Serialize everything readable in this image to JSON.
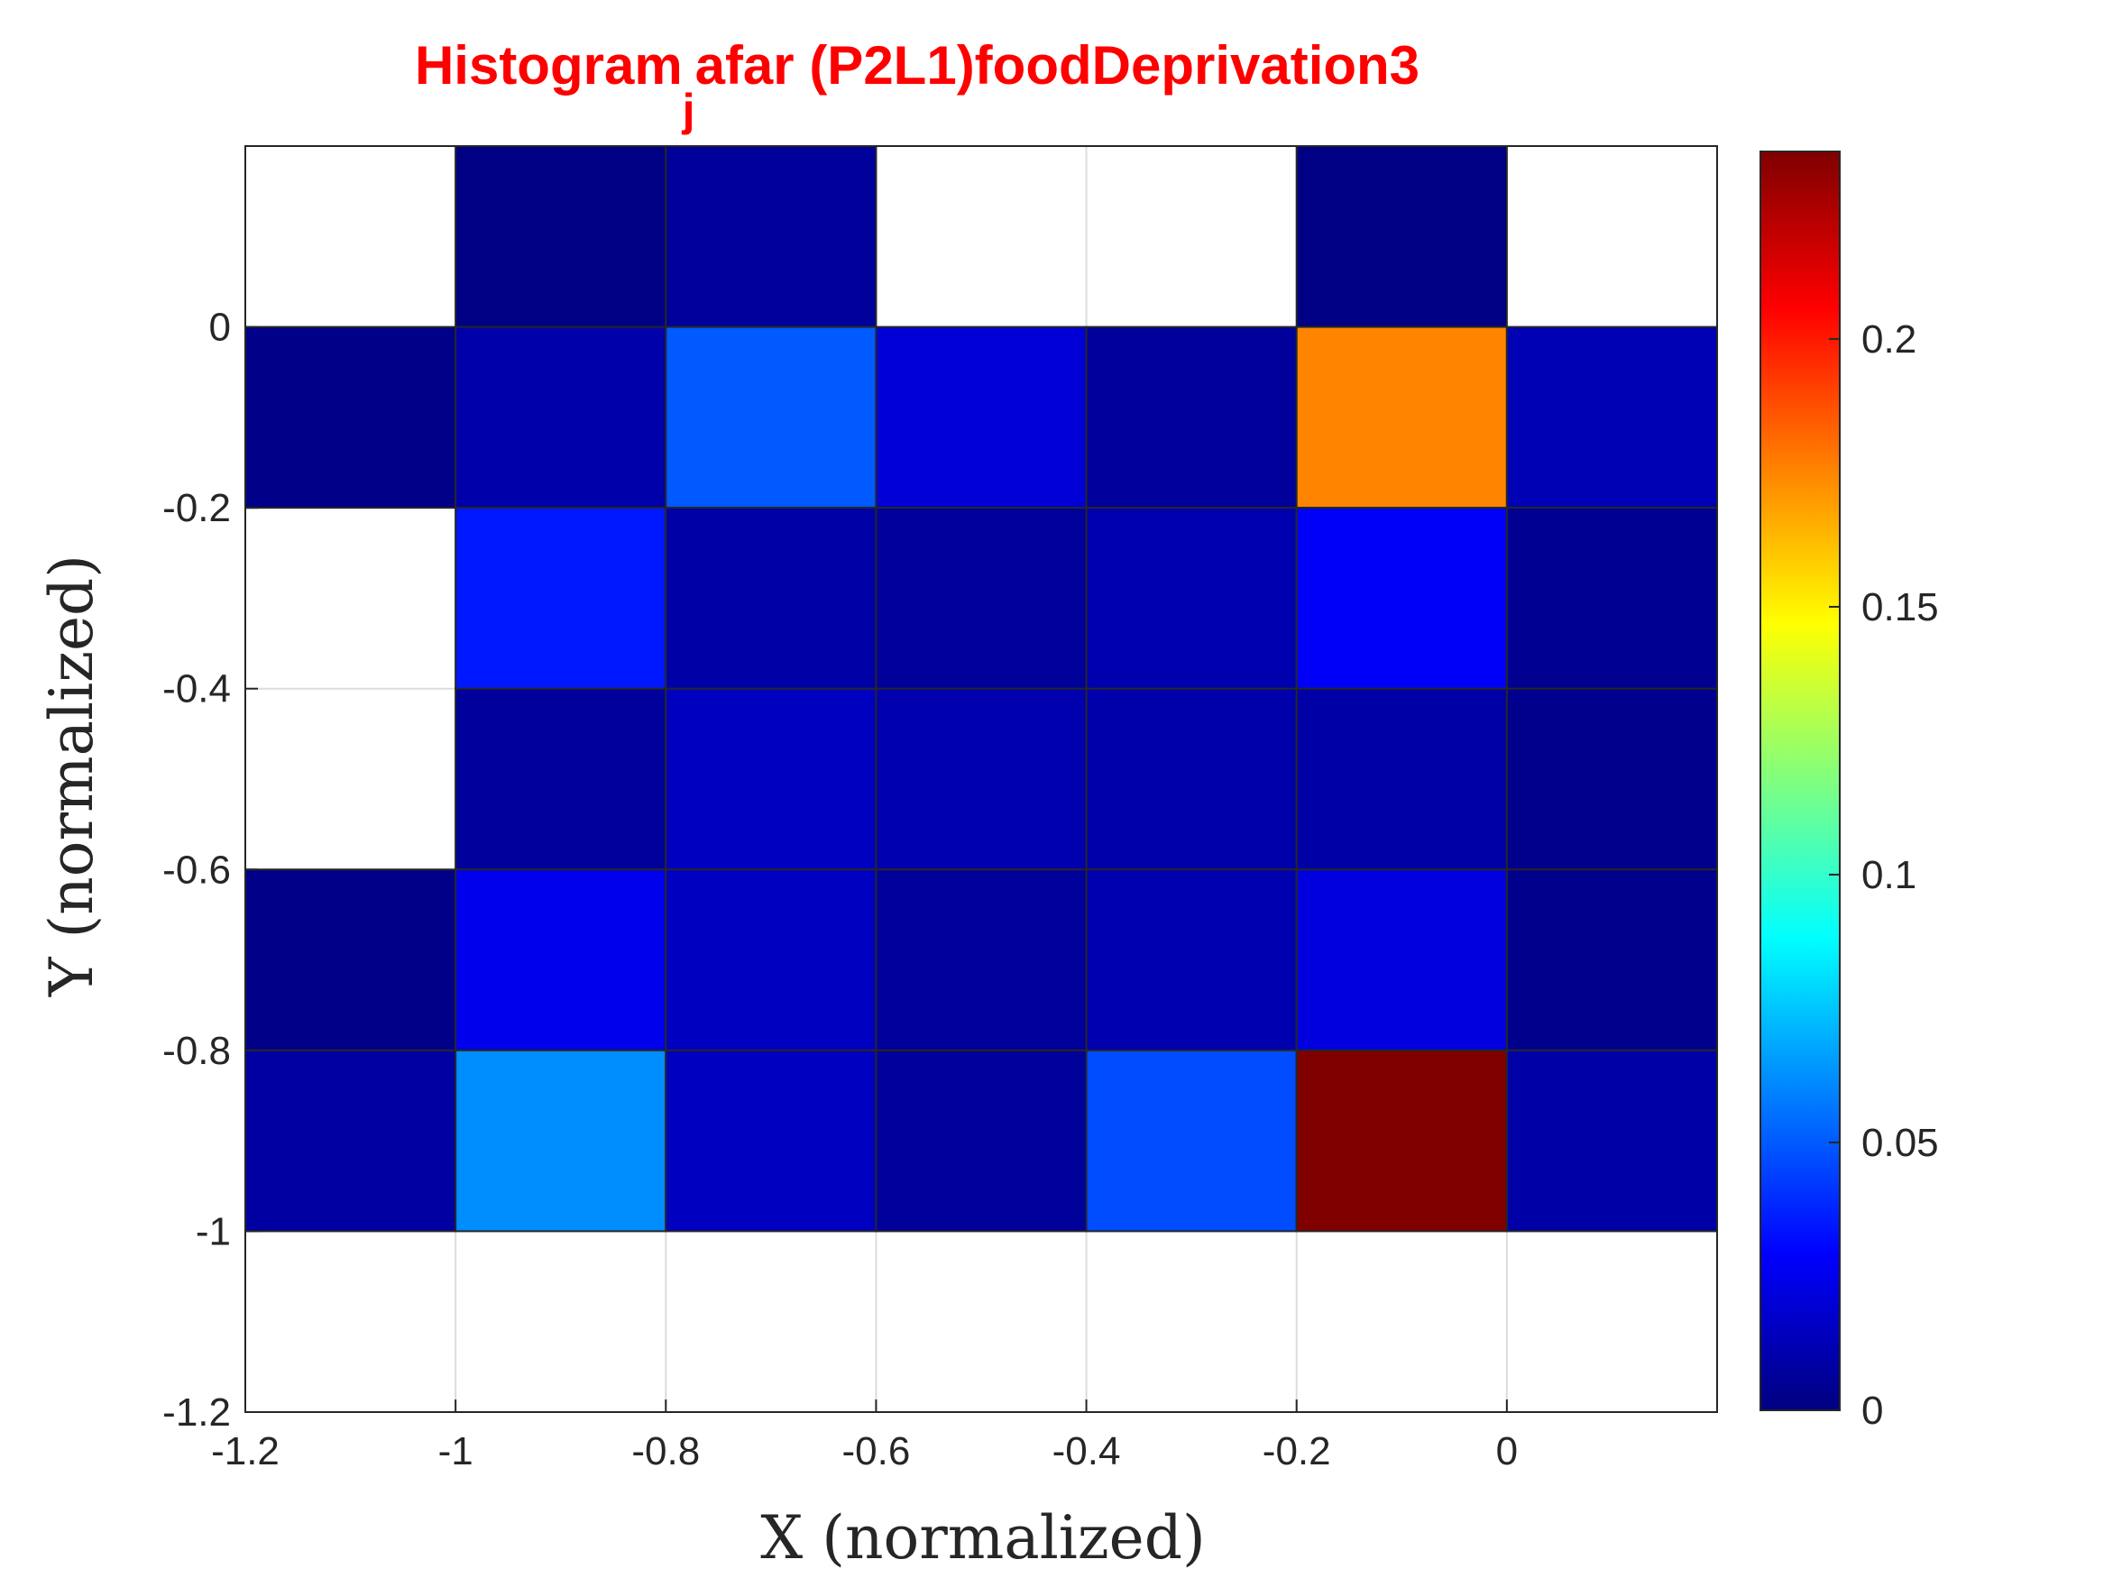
{
  "chart_data": {
    "type": "heatmap",
    "title_main": "Histogram",
    "title_sub": "j",
    "title_rest": "afar (P2L1)foodDeprivation3",
    "xlabel": "X (normalized)",
    "ylabel": "Y (normalized)",
    "xlim": [
      -1.2,
      0.2
    ],
    "ylim": [
      -1.2,
      0.2
    ],
    "x_ticks": [
      "-1.2",
      "-1",
      "-0.8",
      "-0.6",
      "-0.4",
      "-0.2",
      "0"
    ],
    "x_tick_values": [
      -1.2,
      -1,
      -0.8,
      -0.6,
      -0.4,
      -0.2,
      0
    ],
    "y_ticks": [
      "-1.2",
      "-1",
      "-0.8",
      "-0.6",
      "-0.4",
      "-0.2",
      "0"
    ],
    "y_tick_values": [
      -1.2,
      -1,
      -0.8,
      -0.6,
      -0.4,
      -0.2,
      0
    ],
    "grid": true,
    "colormap": "jet",
    "clim": [
      0,
      0.235
    ],
    "colorbar_ticks": [
      "0",
      "0.05",
      "0.1",
      "0.15",
      "0.2"
    ],
    "colorbar_tick_values": [
      0,
      0.05,
      0.1,
      0.15,
      0.2
    ],
    "x_edges": [
      -1.2,
      -1.0,
      -0.8,
      -0.6,
      -0.4,
      -0.2,
      0.0,
      0.2
    ],
    "y_edges": [
      0.2,
      0.0,
      -0.2,
      -0.4,
      -0.6,
      -0.8,
      -1.0
    ],
    "values": [
      [
        null,
        0.001,
        0.006,
        null,
        null,
        0.001,
        null
      ],
      [
        0.002,
        0.01,
        0.05,
        0.02,
        0.006,
        0.175,
        0.012
      ],
      [
        null,
        0.035,
        0.009,
        0.006,
        0.011,
        0.028,
        0.004
      ],
      [
        null,
        0.006,
        0.015,
        0.011,
        0.01,
        0.009,
        0.003
      ],
      [
        0.002,
        0.025,
        0.015,
        0.006,
        0.011,
        0.022,
        0.003
      ],
      [
        0.008,
        0.062,
        0.015,
        0.006,
        0.047,
        0.235,
        0.009
      ]
    ]
  }
}
